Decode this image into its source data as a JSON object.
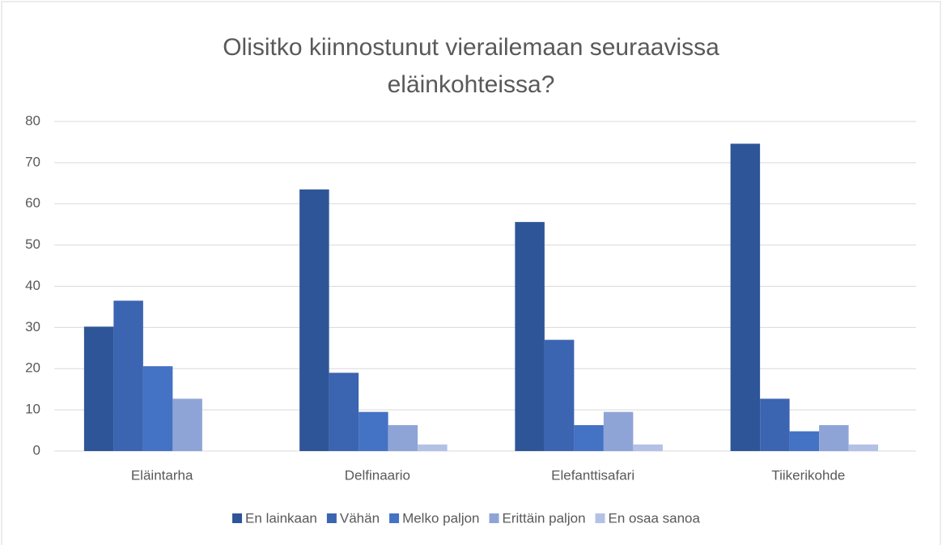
{
  "chart_data": {
    "type": "bar",
    "title": "Olisitko kiinnostunut vierailemaan seuraavissa eläinkohteissa?",
    "categories": [
      "Eläintarha",
      "Delfinaario",
      "Elefanttisafari",
      "Tiikerikohde"
    ],
    "series": [
      {
        "name": "En lainkaan",
        "color": "#2e5597",
        "values": [
          30.2,
          63.5,
          55.6,
          74.6
        ]
      },
      {
        "name": "Vähän",
        "color": "#3b64b1",
        "values": [
          36.5,
          19.0,
          27.0,
          12.7
        ]
      },
      {
        "name": "Melko paljon",
        "color": "#4472c4",
        "values": [
          20.6,
          9.5,
          6.3,
          4.8
        ]
      },
      {
        "name": "Erittäin paljon",
        "color": "#8fa4d6",
        "values": [
          12.7,
          6.3,
          9.5,
          6.3
        ]
      },
      {
        "name": "En osaa sanoa",
        "color": "#b4c1e6",
        "values": [
          0,
          1.6,
          1.6,
          1.6
        ]
      }
    ],
    "ylim": [
      0,
      80
    ],
    "yticks": [
      0,
      10,
      20,
      30,
      40,
      50,
      60,
      70,
      80
    ],
    "grid": true,
    "legend": "bottom"
  }
}
